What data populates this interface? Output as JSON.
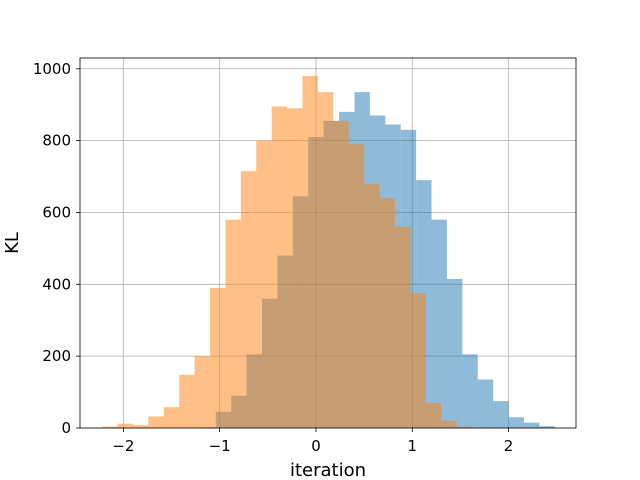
{
  "chart_data": {
    "type": "histogram",
    "title": "",
    "xlabel": "iteration",
    "ylabel": "KL",
    "xlim": [
      -2.45,
      2.7
    ],
    "ylim": [
      0,
      1030
    ],
    "xticks": [
      -2,
      -1,
      0,
      1,
      2
    ],
    "xtick_labels": [
      "−2",
      "−1",
      "0",
      "1",
      "2"
    ],
    "yticks": [
      0,
      200,
      400,
      600,
      800,
      1000
    ],
    "ytick_labels": [
      "0",
      "200",
      "400",
      "600",
      "800",
      "1000"
    ],
    "grid": true,
    "legend": "none",
    "series": [
      {
        "color": "#1f77b4",
        "opacity": 0.5,
        "bin_edges": [
          -1.2,
          -1.04,
          -0.88,
          -0.72,
          -0.56,
          -0.4,
          -0.24,
          -0.08,
          0.08,
          0.24,
          0.4,
          0.56,
          0.72,
          0.88,
          1.04,
          1.2,
          1.36,
          1.52,
          1.68,
          1.84,
          2.0,
          2.16,
          2.32,
          2.48
        ],
        "counts": [
          2,
          45,
          90,
          205,
          360,
          480,
          645,
          810,
          855,
          880,
          935,
          870,
          845,
          830,
          690,
          580,
          415,
          205,
          135,
          75,
          30,
          15,
          5
        ]
      },
      {
        "color": "#ff7f0e",
        "opacity": 0.5,
        "bin_edges": [
          -2.22,
          -2.06,
          -1.9,
          -1.74,
          -1.58,
          -1.42,
          -1.26,
          -1.1,
          -0.94,
          -0.78,
          -0.62,
          -0.46,
          -0.3,
          -0.14,
          0.02,
          0.18,
          0.34,
          0.5,
          0.66,
          0.82,
          0.98,
          1.14,
          1.3,
          1.46,
          1.62
        ],
        "counts": [
          4,
          12,
          8,
          32,
          58,
          148,
          200,
          390,
          580,
          715,
          800,
          895,
          890,
          980,
          935,
          855,
          790,
          680,
          640,
          560,
          375,
          70,
          20,
          3
        ]
      }
    ]
  }
}
